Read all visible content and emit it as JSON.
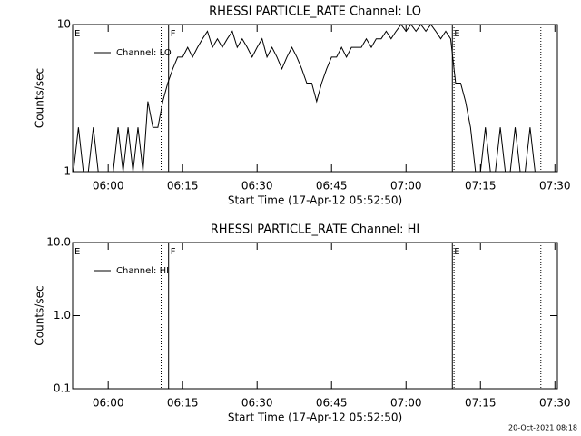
{
  "chart_data": [
    {
      "type": "line",
      "title": "RHESSI PARTICLE_RATE Channel: LO",
      "xlabel": "Start Time (17-Apr-12 05:52:50)",
      "ylabel": "Counts/sec",
      "log_y": true,
      "legend": "upper left",
      "xlim": [
        "05:52:50",
        "07:30:30"
      ],
      "xticks": [
        "06:00",
        "06:15",
        "06:30",
        "06:45",
        "07:00",
        "07:15",
        "07:30"
      ],
      "ylim": [
        1,
        10
      ],
      "yticks": [
        1,
        10
      ],
      "x": [
        "05:53",
        "05:54",
        "05:55",
        "05:56",
        "05:57",
        "05:58",
        "05:59",
        "06:00",
        "06:01",
        "06:02",
        "06:03",
        "06:04",
        "06:05",
        "06:06",
        "06:07",
        "06:08",
        "06:09",
        "06:10",
        "06:11",
        "06:12",
        "06:13",
        "06:14",
        "06:15",
        "06:16",
        "06:17",
        "06:18",
        "06:19",
        "06:20",
        "06:21",
        "06:22",
        "06:23",
        "06:24",
        "06:25",
        "06:26",
        "06:27",
        "06:28",
        "06:29",
        "06:30",
        "06:31",
        "06:32",
        "06:33",
        "06:34",
        "06:35",
        "06:36",
        "06:37",
        "06:38",
        "06:39",
        "06:40",
        "06:41",
        "06:42",
        "06:43",
        "06:44",
        "06:45",
        "06:46",
        "06:47",
        "06:48",
        "06:49",
        "06:50",
        "06:51",
        "06:52",
        "06:53",
        "06:54",
        "06:55",
        "06:56",
        "06:57",
        "06:58",
        "06:59",
        "07:00",
        "07:01",
        "07:02",
        "07:03",
        "07:04",
        "07:05",
        "07:06",
        "07:07",
        "07:08",
        "07:09",
        "07:10",
        "07:11",
        "07:12",
        "07:13",
        "07:14",
        "07:15",
        "07:16",
        "07:17",
        "07:18",
        "07:19",
        "07:20",
        "07:21",
        "07:22",
        "07:23",
        "07:24",
        "07:25",
        "07:26"
      ],
      "series": [
        {
          "name": "Channel: LO",
          "color": "#000000",
          "values": [
            1,
            2,
            1,
            1,
            2,
            1,
            1,
            1,
            1,
            2,
            1,
            2,
            1,
            2,
            1,
            3,
            2,
            2,
            3,
            4,
            5,
            6,
            6,
            7,
            6,
            7,
            8,
            9,
            7,
            8,
            7,
            8,
            9,
            7,
            8,
            7,
            6,
            7,
            8,
            6,
            7,
            6,
            5,
            6,
            7,
            6,
            5,
            4,
            4,
            3,
            4,
            5,
            6,
            6,
            7,
            6,
            7,
            7,
            7,
            8,
            7,
            8,
            8,
            9,
            8,
            9,
            10,
            9,
            10,
            9,
            10,
            9,
            10,
            9,
            8,
            9,
            8,
            4,
            4,
            3,
            2,
            1,
            1,
            2,
            1,
            1,
            2,
            1,
            1,
            2,
            1,
            1,
            2,
            1
          ]
        }
      ],
      "events": [
        {
          "x": "05:52:50",
          "label": "E",
          "style": "none"
        },
        {
          "x": "06:10:40",
          "style": "dotted"
        },
        {
          "x": "06:12:10",
          "label": "F",
          "style": "solid"
        },
        {
          "x": "07:09:20",
          "label": "E",
          "style": "solid"
        },
        {
          "x": "07:09:40",
          "style": "dotted"
        },
        {
          "x": "07:27:10",
          "style": "dotted"
        }
      ]
    },
    {
      "type": "line",
      "title": "RHESSI PARTICLE_RATE Channel: HI",
      "xlabel": "Start Time (17-Apr-12 05:52:50)",
      "ylabel": "Counts/sec",
      "log_y": true,
      "legend": "upper left",
      "xlim": [
        "05:52:50",
        "07:30:30"
      ],
      "xticks": [
        "06:00",
        "06:15",
        "06:30",
        "06:45",
        "07:00",
        "07:15",
        "07:30"
      ],
      "ylim": [
        0.1,
        10
      ],
      "yticks": [
        0.1,
        {
          "value": 1,
          "label": "1.0"
        },
        {
          "value": 10,
          "label": "10.0"
        }
      ],
      "x": [],
      "series": [
        {
          "name": "Channel: HI",
          "color": "#000000",
          "values": []
        }
      ],
      "events": [
        {
          "x": "05:52:50",
          "label": "E",
          "style": "none"
        },
        {
          "x": "06:10:40",
          "style": "dotted"
        },
        {
          "x": "06:12:10",
          "label": "F",
          "style": "solid"
        },
        {
          "x": "07:09:20",
          "label": "E",
          "style": "solid"
        },
        {
          "x": "07:09:40",
          "style": "dotted"
        },
        {
          "x": "07:27:10",
          "style": "dotted"
        }
      ]
    }
  ],
  "timestamp": "20-Oct-2021 08:18"
}
